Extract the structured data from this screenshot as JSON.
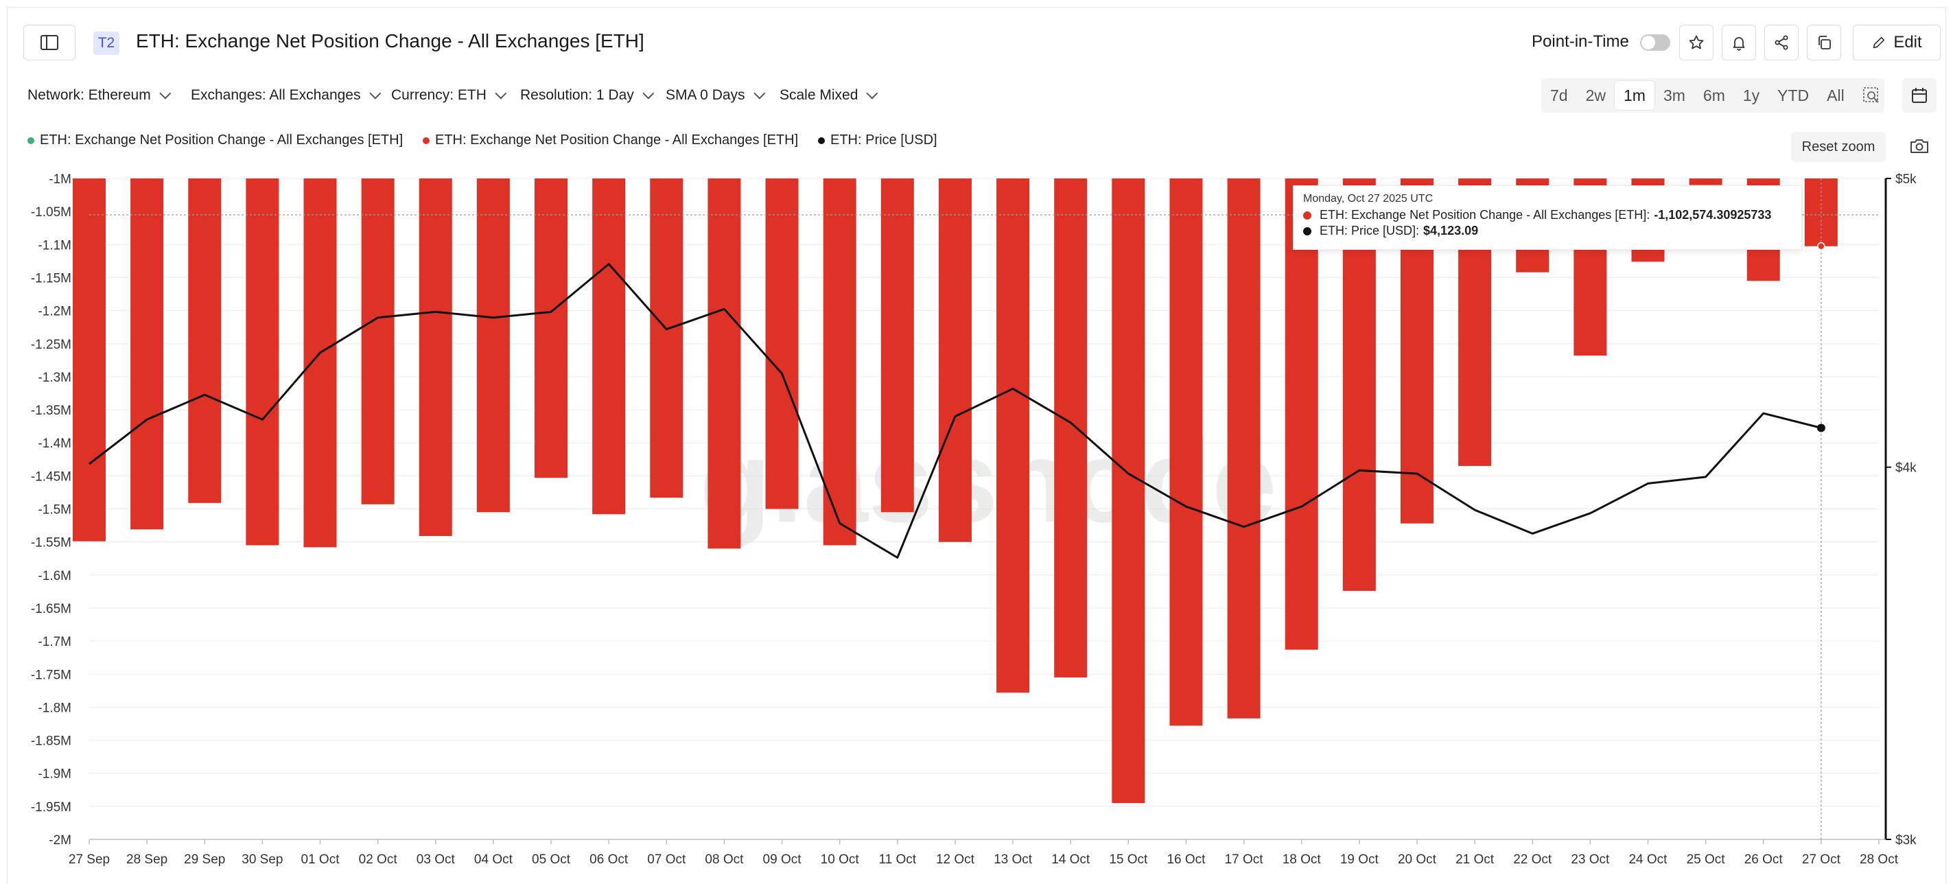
{
  "header": {
    "tier_badge": "T2",
    "title": "ETH: Exchange Net Position Change - All Exchanges [ETH]",
    "point_in_time_label": "Point-in-Time",
    "edit_label": "Edit"
  },
  "filters": {
    "network": "Network: Ethereum",
    "exchanges": "Exchanges: All Exchanges",
    "currency": "Currency: ETH",
    "resolution": "Resolution: 1 Day",
    "sma": "SMA 0 Days",
    "scale": "Scale Mixed"
  },
  "ranges": [
    "7d",
    "2w",
    "1m",
    "3m",
    "6m",
    "1y",
    "YTD",
    "All"
  ],
  "active_range": "1m",
  "legend": {
    "green": "ETH: Exchange Net Position Change - All Exchanges [ETH]",
    "red": "ETH: Exchange Net Position Change - All Exchanges [ETH]",
    "black": "ETH: Price [USD]"
  },
  "reset_zoom_label": "Reset zoom",
  "tooltip": {
    "date": "Monday, Oct 27 2025 UTC",
    "netpos_label": "ETH: Exchange Net Position Change - All Exchanges [ETH]:",
    "netpos_value": "-1,102,574.30925733",
    "price_label": "ETH: Price [USD]:",
    "price_value": "$4,123.09"
  },
  "watermark": "glassnode",
  "colors": {
    "bar": "#de3226",
    "price_line": "#111111",
    "legend_green": "#3bb273",
    "accent_badge": "#e3e6ff"
  },
  "icons": [
    "sidebar-toggle-icon",
    "star-icon",
    "bell-icon",
    "share-icon",
    "copy-icon",
    "pencil-icon",
    "zoom-select-icon",
    "calendar-icon",
    "camera-icon"
  ],
  "chart_data": {
    "type": "bar",
    "categories": [
      "27 Sep",
      "28 Sep",
      "29 Sep",
      "30 Sep",
      "01 Oct",
      "02 Oct",
      "03 Oct",
      "04 Oct",
      "05 Oct",
      "06 Oct",
      "07 Oct",
      "08 Oct",
      "09 Oct",
      "10 Oct",
      "11 Oct",
      "12 Oct",
      "13 Oct",
      "14 Oct",
      "15 Oct",
      "16 Oct",
      "17 Oct",
      "18 Oct",
      "19 Oct",
      "20 Oct",
      "21 Oct",
      "22 Oct",
      "23 Oct",
      "24 Oct",
      "25 Oct",
      "26 Oct",
      "27 Oct",
      "28 Oct"
    ],
    "series": [
      {
        "name": "ETH: Exchange Net Position Change - All Exchanges [ETH]",
        "type": "bar",
        "axis": "left",
        "values": [
          -1549000,
          -1531000,
          -1491000,
          -1555000,
          -1558000,
          -1493000,
          -1541000,
          -1505000,
          -1453000,
          -1508000,
          -1483000,
          -1560000,
          -1500000,
          -1555000,
          -1505000,
          -1550000,
          -1778000,
          -1755000,
          -1945000,
          -1828000,
          -1817000,
          -1713000,
          -1624000,
          -1522000,
          -1435000,
          -1142000,
          -1268000,
          -1126000,
          -1010000,
          -1155000,
          -1102574.31,
          null
        ]
      },
      {
        "name": "ETH: Price [USD]",
        "type": "line",
        "axis": "right",
        "values": [
          4010,
          4150,
          4230,
          4150,
          4370,
          4490,
          4510,
          4490,
          4510,
          4680,
          4450,
          4520,
          4300,
          3830,
          3730,
          4160,
          4250,
          4140,
          3980,
          3880,
          3820,
          3880,
          3990,
          3980,
          3870,
          3800,
          3860,
          3950,
          3970,
          4170,
          4123.09,
          null
        ]
      }
    ],
    "ylim_left": [
      -2000000,
      -1000000
    ],
    "left_ticks": [
      "-1M",
      "-1.05M",
      "-1.1M",
      "-1.15M",
      "-1.2M",
      "-1.25M",
      "-1.3M",
      "-1.35M",
      "-1.4M",
      "-1.45M",
      "-1.5M",
      "-1.55M",
      "-1.6M",
      "-1.65M",
      "-1.7M",
      "-1.75M",
      "-1.8M",
      "-1.85M",
      "-1.9M",
      "-1.95M",
      "-2M"
    ],
    "ylim_right": [
      3000,
      5000
    ],
    "right_scale": "log",
    "right_ticks": [
      {
        "value": 5000,
        "label": "$5k"
      },
      {
        "value": 4000,
        "label": "$4k"
      },
      {
        "value": 3000,
        "label": "$3k"
      }
    ],
    "hover_reference_value": -1055000,
    "hover_category": "27 Oct",
    "grid": true,
    "legend_position": "top-left"
  }
}
